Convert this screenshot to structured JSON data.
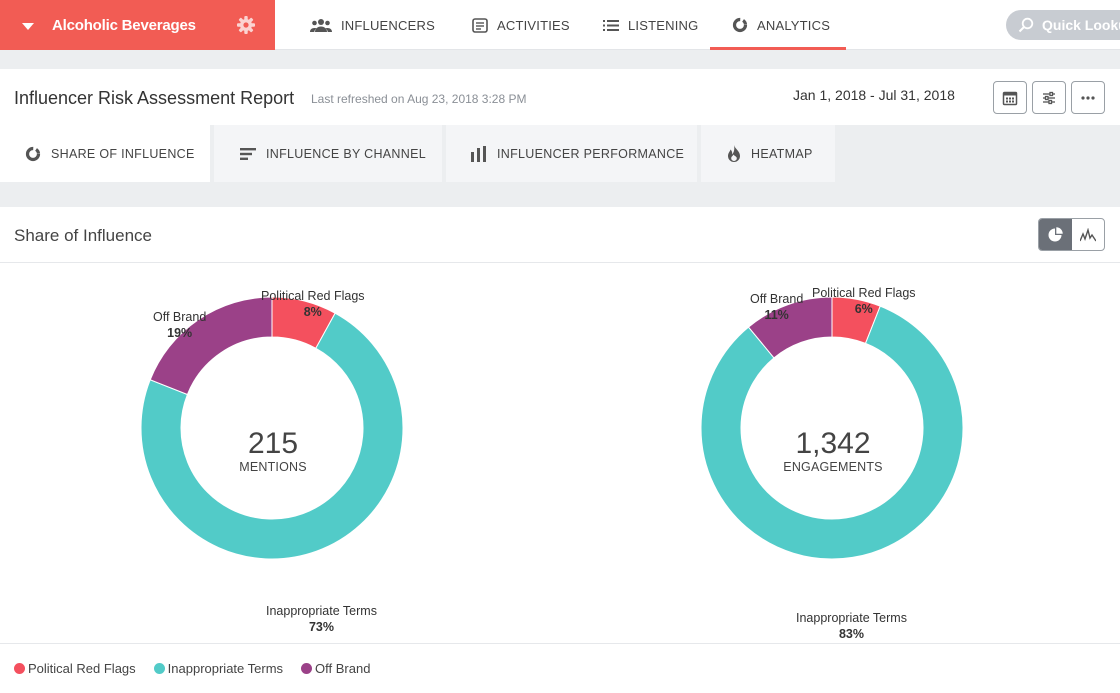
{
  "nav": {
    "brand": "Alcoholic Beverages",
    "items": [
      {
        "label": "INFLUENCERS"
      },
      {
        "label": "ACTIVITIES"
      },
      {
        "label": "LISTENING"
      },
      {
        "label": "ANALYTICS"
      }
    ],
    "quick_lookup": "Quick Lookup"
  },
  "header": {
    "title": "Influencer Risk Assessment Report",
    "refreshed": "Last refreshed on Aug 23, 2018 3:28 PM",
    "date_range": "Jan 1, 2018 - Jul 31, 2018"
  },
  "tabs": [
    {
      "label": "SHARE OF INFLUENCE"
    },
    {
      "label": "INFLUENCE BY CHANNEL"
    },
    {
      "label": "INFLUENCER PERFORMANCE"
    },
    {
      "label": "HEATMAP"
    }
  ],
  "section": {
    "title": "Share of Influence"
  },
  "colors": {
    "accent": "#f25c54",
    "political": "#f4505e",
    "inappropriate": "#52cbc8",
    "offbrand": "#9b4188"
  },
  "chart_data": [
    {
      "type": "pie",
      "center_value": "215",
      "center_label": "MENTIONS",
      "slices": [
        {
          "name": "Political Red Flags",
          "value": 8,
          "label": "8%"
        },
        {
          "name": "Inappropriate Terms",
          "value": 73,
          "label": "73%"
        },
        {
          "name": "Off Brand",
          "value": 19,
          "label": "19%"
        }
      ]
    },
    {
      "type": "pie",
      "center_value": "1,342",
      "center_label": "ENGAGEMENTS",
      "slices": [
        {
          "name": "Political Red Flags",
          "value": 6,
          "label": "6%"
        },
        {
          "name": "Inappropriate Terms",
          "value": 83,
          "label": "83%"
        },
        {
          "name": "Off Brand",
          "value": 11,
          "label": "11%"
        }
      ]
    }
  ],
  "legend": [
    {
      "label": "Political Red Flags"
    },
    {
      "label": "Inappropriate Terms"
    },
    {
      "label": "Off Brand"
    }
  ]
}
